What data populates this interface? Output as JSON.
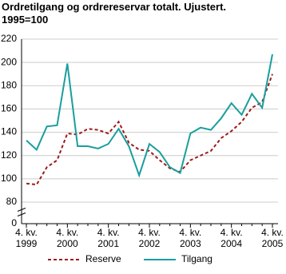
{
  "chart_data": {
    "type": "line",
    "title": "Ordretilgang og ordrereservar totalt. Ujustert. 1995=100",
    "categories": [
      "4. kv. 1999",
      null,
      null,
      null,
      "4. kv. 2000",
      null,
      null,
      null,
      "4. kv. 2001",
      null,
      null,
      null,
      "4. kv. 2002",
      null,
      null,
      null,
      "4. kv. 2003",
      null,
      null,
      null,
      "4. kv. 2004",
      null,
      null,
      null,
      "4. kv. 2005"
    ],
    "series": [
      {
        "name": "Reserve",
        "color": "#9e1b1b",
        "dashed": true,
        "values": [
          96,
          95,
          110,
          116,
          139,
          138,
          143,
          142,
          139,
          149,
          131,
          125,
          124,
          116,
          109,
          106,
          116,
          120,
          124,
          135,
          141,
          149,
          161,
          166,
          190
        ]
      },
      {
        "name": "Tilgang",
        "color": "#1a9e9e",
        "dashed": false,
        "values": [
          133,
          125,
          145,
          146,
          199,
          128,
          128,
          126,
          130,
          143,
          128,
          103,
          130,
          123,
          110,
          105,
          139,
          144,
          142,
          152,
          165,
          155,
          173,
          161,
          207
        ]
      }
    ],
    "ylim": [
      0,
      220
    ],
    "yticks": [
      0,
      80,
      100,
      120,
      140,
      160,
      180,
      200,
      220
    ],
    "broken_axis": true,
    "grid": true,
    "legend": "bottom"
  }
}
